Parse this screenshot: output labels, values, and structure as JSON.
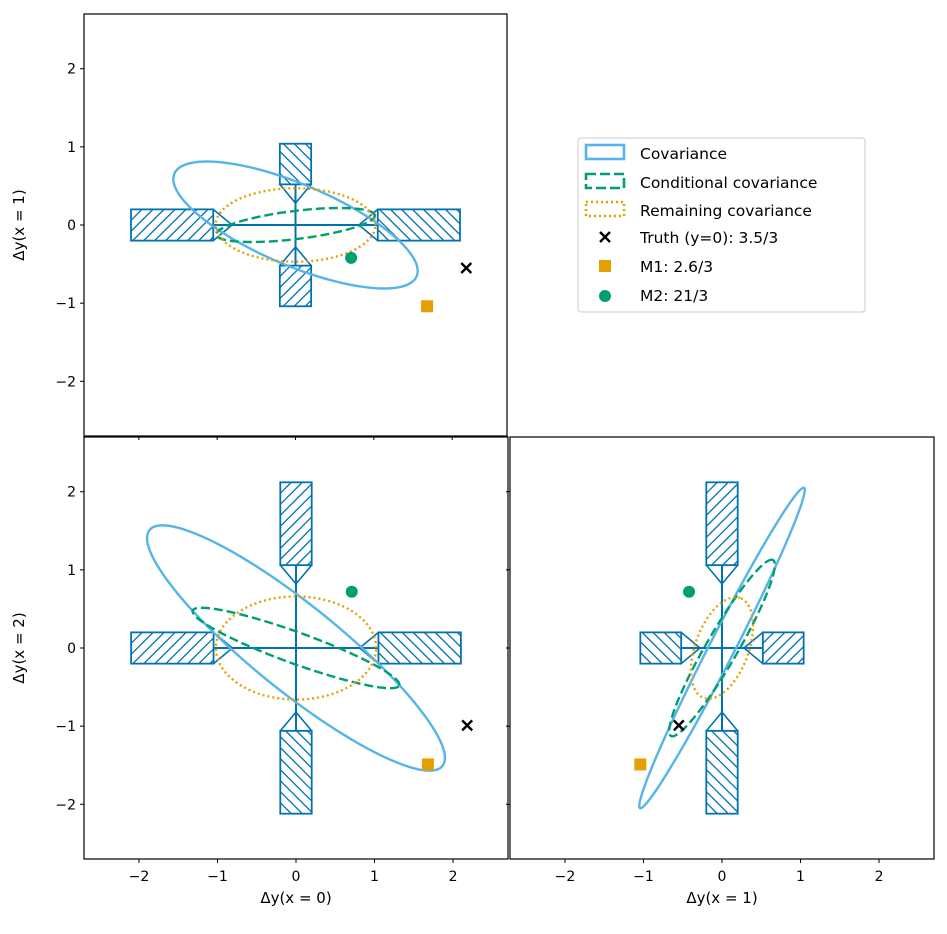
{
  "chart_data": {
    "type": "corner-ellipse-plot",
    "colors": {
      "covariance": "#56B4E9",
      "conditional": "#009E73",
      "remaining": "#E69F00",
      "cross": "#0072B2",
      "truth": "#000000",
      "m1": "#E69F00",
      "m2": "#009E73"
    },
    "legend": {
      "covariance": "Covariance",
      "conditional": "Conditional covariance",
      "remaining": "Remaining covariance",
      "truth": "Truth (y=0): 3.5/3",
      "m1": "M1: 2.6/3",
      "m2": "M2: 21/3"
    },
    "axis_range": [
      -2.7,
      2.7
    ],
    "ticks": [
      -2,
      -1,
      0,
      1,
      2
    ],
    "tick_labels": [
      "−2",
      "−1",
      "0",
      "1",
      "2"
    ],
    "axis_labels": {
      "x0": "Δy(x = 0)",
      "x1": "Δy(x = 1)",
      "x2": "Δy(x = 2)"
    },
    "variables": [
      "y0",
      "y1",
      "y2"
    ],
    "sigma": [
      1.05,
      0.52,
      1.06
    ],
    "points": {
      "truth": [
        2.18,
        -0.55,
        -0.99
      ],
      "m1": [
        1.68,
        -1.04,
        -1.49
      ],
      "m2": [
        0.71,
        -0.42,
        0.72
      ]
    },
    "panels": [
      {
        "id": "top-left",
        "x_var": 0,
        "y_var": 1,
        "cov": {
          "a": 1.68,
          "b": 0.52,
          "angle_deg": -23
        },
        "cond": {
          "a": 1.02,
          "b": 0.18,
          "angle_deg": 7
        },
        "rem": {
          "a": 1.02,
          "b": 0.47,
          "angle_deg": 0
        },
        "bars": [
          {
            "side": "left",
            "hatch": "fwd"
          },
          {
            "side": "right",
            "hatch": "back"
          },
          {
            "side": "top",
            "hatch": "back"
          },
          {
            "side": "bottom",
            "hatch": "fwd"
          }
        ]
      },
      {
        "id": "bottom-left",
        "x_var": 0,
        "y_var": 2,
        "cov": {
          "a": 2.4,
          "b": 0.55,
          "angle_deg": -39
        },
        "cond": {
          "a": 1.4,
          "b": 0.2,
          "angle_deg": -20
        },
        "rem": {
          "a": 1.02,
          "b": 0.66,
          "angle_deg": 0
        },
        "bars": [
          {
            "side": "left",
            "hatch": "fwd"
          },
          {
            "side": "right",
            "hatch": "back"
          },
          {
            "side": "top",
            "hatch": "fwd"
          },
          {
            "side": "bottom",
            "hatch": "back"
          }
        ]
      },
      {
        "id": "bottom-right",
        "x_var": 1,
        "y_var": 2,
        "cov": {
          "a": 2.3,
          "b": 0.16,
          "angle_deg": 63
        },
        "cond": {
          "a": 1.3,
          "b": 0.2,
          "angle_deg": 60
        },
        "rem": {
          "a": 0.68,
          "b": 0.34,
          "angle_deg": 70
        },
        "bars": [
          {
            "side": "left",
            "hatch": "back"
          },
          {
            "side": "right",
            "hatch": "fwd"
          },
          {
            "side": "top",
            "hatch": "fwd"
          },
          {
            "side": "bottom",
            "hatch": "back"
          }
        ]
      }
    ]
  }
}
